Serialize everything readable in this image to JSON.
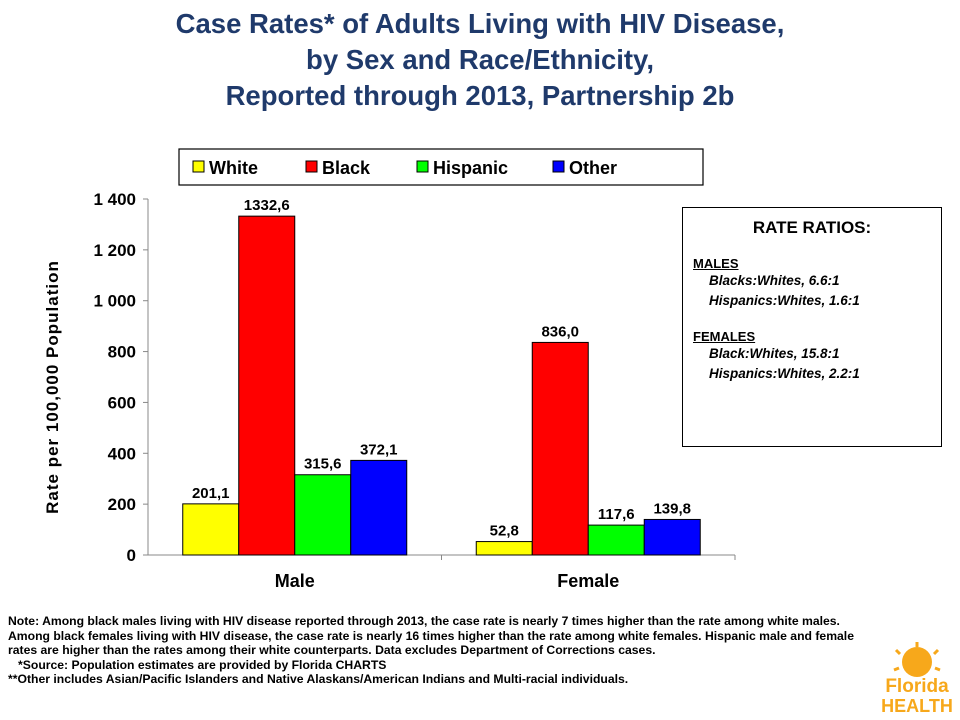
{
  "title": {
    "line1": "Case Rates* of Adults Living with HIV Disease,",
    "line2": "by Sex and Race/Ethnicity,",
    "line3": "Reported through 2013, Partnership 2b"
  },
  "chart_data": {
    "type": "bar",
    "categories": [
      "Male",
      "Female"
    ],
    "series": [
      {
        "name": "White",
        "color": "#ffff00",
        "values": [
          201.1,
          52.8
        ],
        "labels": [
          "201,1",
          "52,8"
        ]
      },
      {
        "name": "Black",
        "color": "#ff0000",
        "values": [
          1332.6,
          836.0
        ],
        "labels": [
          "1332,6",
          "836,0"
        ]
      },
      {
        "name": "Hispanic",
        "color": "#00ff00",
        "values": [
          315.6,
          117.6
        ],
        "labels": [
          "315,6",
          "117,6"
        ]
      },
      {
        "name": "Other",
        "color": "#0000ff",
        "values": [
          372.1,
          139.8
        ],
        "labels": [
          "372,1",
          "139,8"
        ]
      }
    ],
    "ylabel": "Rate per 100,000 Population",
    "ylim": [
      0,
      1400
    ],
    "yticks": [
      0,
      200,
      400,
      600,
      800,
      1000,
      1200,
      1400
    ],
    "ytick_labels": [
      "0",
      "200",
      "400",
      "600",
      "800",
      "1 000",
      "1 200",
      "1 400"
    ],
    "grid": false,
    "legend_position": "top"
  },
  "rate_ratios": {
    "heading": "RATE RATIOS:",
    "males_label": "MALES",
    "male_lines": [
      "Blacks:Whites, 6.6:1",
      "Hispanics:Whites, 1.6:1"
    ],
    "females_label": "FEMALES",
    "female_lines": [
      "Black:Whites, 15.8:1",
      "Hispanics:Whites, 2.2:1"
    ]
  },
  "notes": {
    "main": "Note: Among black males living with HIV disease reported through 2013, the case rate is nearly 7 times higher than the rate among white males.  Among black females living with HIV disease, the case rate is nearly 16 times higher than the rate among white females.  Hispanic male and female rates are higher than the rates among their white counterparts.  Data excludes Department of Corrections cases.",
    "source": "*Source: Population estimates are provided by Florida CHARTS",
    "other": "**Other includes Asian/Pacific Islanders and Native Alaskans/American Indians and Multi-racial individuals."
  },
  "logo": {
    "line1": "Florida",
    "line2": "HEALTH"
  }
}
